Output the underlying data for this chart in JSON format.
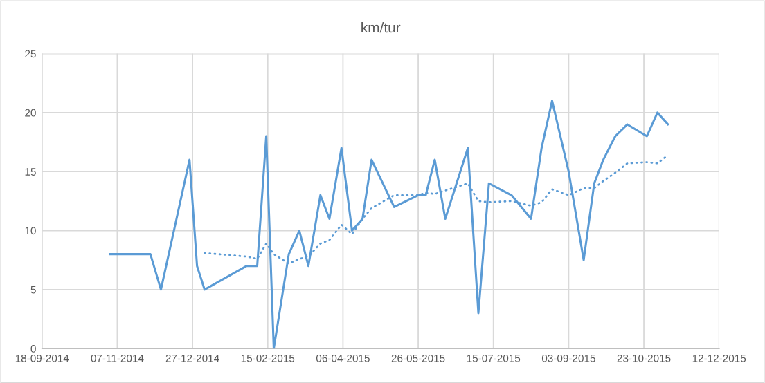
{
  "chart_data": {
    "type": "line",
    "title": "km/tur",
    "xlim": [
      "2014-09-18",
      "2015-12-12"
    ],
    "xticks": [
      {
        "value": "2014-09-18",
        "label": "18-09-2014"
      },
      {
        "value": "2014-11-07",
        "label": "07-11-2014"
      },
      {
        "value": "2014-12-27",
        "label": "27-12-2014"
      },
      {
        "value": "2015-02-15",
        "label": "15-02-2015"
      },
      {
        "value": "2015-04-06",
        "label": "06-04-2015"
      },
      {
        "value": "2015-05-26",
        "label": "26-05-2015"
      },
      {
        "value": "2015-07-15",
        "label": "15-07-2015"
      },
      {
        "value": "2015-09-03",
        "label": "03-09-2015"
      },
      {
        "value": "2015-10-23",
        "label": "23-10-2015"
      },
      {
        "value": "2015-12-12",
        "label": "12-12-2015"
      }
    ],
    "ylim": [
      0,
      25
    ],
    "yticks": [
      0,
      5,
      10,
      15,
      20,
      25
    ],
    "grid": true,
    "series": [
      {
        "color": "#5b9bd5",
        "line_style": "solid",
        "x": [
          "2014-11-02",
          "2014-11-29",
          "2014-12-06",
          "2014-12-25",
          "2014-12-30",
          "2015-01-04",
          "2015-02-01",
          "2015-02-08",
          "2015-02-14",
          "2015-02-19",
          "2015-03-01",
          "2015-03-08",
          "2015-03-14",
          "2015-03-22",
          "2015-03-28",
          "2015-04-05",
          "2015-04-12",
          "2015-04-19",
          "2015-04-25",
          "2015-05-10",
          "2015-05-26",
          "2015-05-31",
          "2015-06-06",
          "2015-06-13",
          "2015-06-28",
          "2015-07-05",
          "2015-07-12",
          "2015-07-27",
          "2015-08-09",
          "2015-08-16",
          "2015-08-23",
          "2015-09-03",
          "2015-09-13",
          "2015-09-20",
          "2015-09-26",
          "2015-10-04",
          "2015-10-12",
          "2015-10-25",
          "2015-11-01",
          "2015-11-08"
        ],
        "values": [
          8,
          8,
          5,
          16,
          7,
          5,
          7,
          7,
          18,
          0,
          8,
          10,
          7,
          13,
          11,
          17,
          10,
          11,
          16,
          12,
          13,
          13,
          16,
          11,
          17,
          3,
          14,
          13,
          11,
          17,
          21,
          15,
          7.5,
          14,
          16,
          18,
          19,
          18,
          20,
          19
        ]
      },
      {
        "color": "#5b9bd5",
        "line_style": "dotted",
        "x": [
          "2015-01-04",
          "2015-02-01",
          "2015-02-08",
          "2015-02-14",
          "2015-02-19",
          "2015-03-01",
          "2015-03-08",
          "2015-03-14",
          "2015-03-22",
          "2015-03-28",
          "2015-04-05",
          "2015-04-12",
          "2015-04-19",
          "2015-04-25",
          "2015-05-10",
          "2015-05-26",
          "2015-05-31",
          "2015-06-06",
          "2015-06-13",
          "2015-06-28",
          "2015-07-05",
          "2015-07-12",
          "2015-07-27",
          "2015-08-09",
          "2015-08-16",
          "2015-08-23",
          "2015-09-03",
          "2015-09-13",
          "2015-09-20",
          "2015-09-26",
          "2015-10-04",
          "2015-10-12",
          "2015-10-25",
          "2015-11-01",
          "2015-11-08"
        ],
        "values": [
          8.1,
          7.8,
          7.6,
          8.9,
          8.0,
          7.2,
          7.6,
          7.8,
          8.9,
          9.2,
          10.5,
          9.7,
          11.0,
          11.9,
          13.0,
          13.0,
          13.2,
          13.1,
          13.4,
          14.0,
          12.5,
          12.4,
          12.5,
          12.1,
          12.4,
          13.5,
          13.0,
          13.6,
          13.6,
          14.2,
          14.9,
          15.7,
          15.8,
          15.7,
          16.4
        ]
      }
    ]
  }
}
